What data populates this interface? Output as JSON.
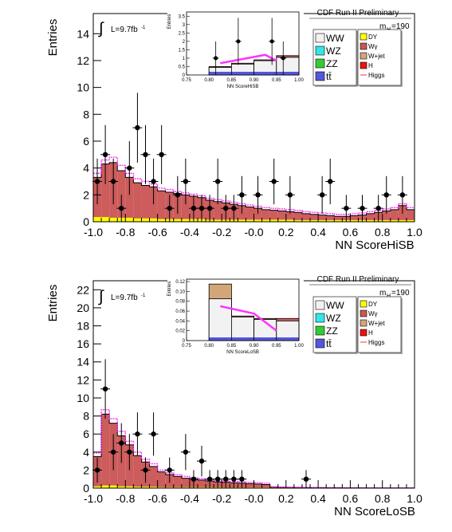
{
  "chart_data": [
    {
      "type": "bar",
      "xlabel": "NN ScoreHiSB",
      "ylabel": "Entries",
      "header": "CDF Run II Preliminary",
      "mass_label": "m",
      "mass_sub": "H",
      "mass_value": "=190",
      "lumi_label": "L=9.7fb",
      "lumi_sup": "-1",
      "integral_symbol": "∫",
      "xlim": [
        -1.0,
        1.0
      ],
      "ylim": [
        0,
        15.5
      ],
      "xticks": [
        "-1.0",
        "-0.8",
        "-0.6",
        "-0.4",
        "-0.2",
        "-0.0",
        "0.2",
        "0.4",
        "0.6",
        "0.8",
        "1.0"
      ],
      "yticks": [
        "0",
        "2",
        "4",
        "6",
        "8",
        "10",
        "12",
        "14"
      ],
      "legend": [
        {
          "label": "WW",
          "color": "#f2f2f2"
        },
        {
          "label": "WZ",
          "color": "#33e6e6"
        },
        {
          "label": "ZZ",
          "color": "#33cc33"
        },
        {
          "label": "tt̄",
          "color": "#5555dd"
        },
        {
          "label": "DY",
          "color": "#ffff00"
        },
        {
          "label": "Wγ",
          "color": "#cc5555"
        },
        {
          "label": "W+jet",
          "color": "#d2a679"
        },
        {
          "label": "H",
          "color": "#ee1111"
        },
        {
          "label": "Higgs",
          "color": "#ff3333"
        }
      ],
      "bin_edges_step": 0.05,
      "total_bkg": [
        3.3,
        4.3,
        4.4,
        3.8,
        3.3,
        2.9,
        2.7,
        2.6,
        2.3,
        2.2,
        2.1,
        2.0,
        1.9,
        1.8,
        1.6,
        1.5,
        1.4,
        1.3,
        1.2,
        1.1,
        1.0,
        0.9,
        0.85,
        0.8,
        0.75,
        0.7,
        0.6,
        0.55,
        0.5,
        0.45,
        0.4,
        0.4,
        0.45,
        0.5,
        0.6,
        0.7,
        0.8,
        0.9,
        1.2,
        0.9
      ],
      "yellow_part": [
        0.35,
        0.35,
        0.3,
        0.3,
        0.3,
        0.25,
        0.25,
        0.25,
        0.2,
        0.2,
        0.2,
        0.2,
        0.2,
        0.2,
        0.15,
        0.15,
        0.15,
        0.15,
        0.15,
        0.15,
        0.15,
        0.15,
        0.15,
        0.15,
        0.15,
        0.12,
        0.12,
        0.12,
        0.12,
        0.12,
        0.12,
        0.12,
        0.12,
        0.12,
        0.12,
        0.12,
        0.12,
        0.12,
        0.12,
        0.12
      ],
      "signal": [
        3.6,
        4.6,
        4.8,
        4.2,
        3.6,
        3.2,
        3.0,
        2.8,
        2.5,
        2.4,
        2.25,
        2.15,
        2.05,
        1.95,
        1.75,
        1.65,
        1.55,
        1.45,
        1.35,
        1.25,
        1.15,
        1.05,
        1.0,
        0.95,
        0.9,
        0.85,
        0.75,
        0.7,
        0.65,
        0.6,
        0.55,
        0.55,
        0.6,
        0.65,
        0.75,
        0.85,
        0.95,
        1.05,
        1.35,
        1.05
      ],
      "data_points": [
        {
          "x": -0.975,
          "y": 3,
          "err": 1.7
        },
        {
          "x": -0.925,
          "y": 5,
          "err": 2.2
        },
        {
          "x": -0.875,
          "y": 3,
          "err": 1.7
        },
        {
          "x": -0.825,
          "y": 1,
          "err": 1.0
        },
        {
          "x": -0.775,
          "y": 4,
          "err": 2.0
        },
        {
          "x": -0.725,
          "y": 7,
          "err": 2.6
        },
        {
          "x": -0.675,
          "y": 5,
          "err": 2.2
        },
        {
          "x": -0.625,
          "y": 3,
          "err": 1.7
        },
        {
          "x": -0.575,
          "y": 5,
          "err": 2.2
        },
        {
          "x": -0.525,
          "y": 1,
          "err": 1.0
        },
        {
          "x": -0.475,
          "y": 2,
          "err": 1.4
        },
        {
          "x": -0.425,
          "y": 3,
          "err": 1.7
        },
        {
          "x": -0.375,
          "y": 1,
          "err": 1.0
        },
        {
          "x": -0.325,
          "y": 1,
          "err": 1.0
        },
        {
          "x": -0.275,
          "y": 1,
          "err": 1.0
        },
        {
          "x": -0.225,
          "y": 3,
          "err": 1.7
        },
        {
          "x": -0.175,
          "y": 1,
          "err": 1.0
        },
        {
          "x": -0.125,
          "y": 1,
          "err": 1.0
        },
        {
          "x": -0.075,
          "y": 2,
          "err": 1.4
        },
        {
          "x": 0.025,
          "y": 2,
          "err": 1.4
        },
        {
          "x": 0.125,
          "y": 3,
          "err": 1.7
        },
        {
          "x": 0.225,
          "y": 2,
          "err": 1.4
        },
        {
          "x": 0.425,
          "y": 2,
          "err": 1.4
        },
        {
          "x": 0.475,
          "y": 3,
          "err": 1.7
        },
        {
          "x": 0.575,
          "y": 1,
          "err": 1.0
        },
        {
          "x": 0.675,
          "y": 1,
          "err": 1.0
        },
        {
          "x": 0.775,
          "y": 1,
          "err": 1.0
        },
        {
          "x": 0.825,
          "y": 2,
          "err": 1.4
        },
        {
          "x": 0.925,
          "y": 2,
          "err": 1.4
        }
      ],
      "inset": {
        "xlabel": "NN ScoreHiSB",
        "ylabel": "Entries",
        "xlim": [
          0.75,
          1.0
        ],
        "ylim": [
          0,
          3.75
        ],
        "xticks": [
          "0.75",
          "0.80",
          "0.85",
          "0.90",
          "0.95",
          "1.00"
        ],
        "yticks": [
          "0",
          "0.5",
          "1",
          "1.5",
          "2",
          "2.5",
          "3",
          "3.5"
        ],
        "bin_edges": [
          0.8,
          0.85,
          0.9,
          0.95,
          1.0
        ],
        "bkg": [
          0.5,
          0.7,
          0.9,
          1.15,
          0.55
        ],
        "white_top": [
          0.45,
          0.65,
          0.85,
          1.05,
          0.2
        ],
        "signal_line": [
          [
            0.825,
            0.7
          ],
          [
            0.925,
            1.2
          ],
          [
            0.95,
            0.85
          ]
        ],
        "data_points": [
          {
            "x": 0.815,
            "y": 1,
            "err": 1.0
          },
          {
            "x": 0.865,
            "y": 2,
            "err": 1.4
          },
          {
            "x": 0.94,
            "y": 2,
            "err": 1.4
          },
          {
            "x": 0.965,
            "y": 1,
            "err": 1.0
          }
        ]
      }
    },
    {
      "type": "bar",
      "xlabel": "NN ScoreLoSB",
      "ylabel": "Entries",
      "header": "CDF Run II Preliminary",
      "mass_label": "m",
      "mass_sub": "H",
      "mass_value": "=190",
      "lumi_label": "L=9.7fb",
      "lumi_sup": "-1",
      "integral_symbol": "∫",
      "xlim": [
        -1.0,
        1.0
      ],
      "ylim": [
        0,
        23
      ],
      "xticks": [
        "-1.0",
        "-0.8",
        "-0.6",
        "-0.4",
        "-0.2",
        "-0.0",
        "0.2",
        "0.4",
        "0.6",
        "0.8",
        "1.0"
      ],
      "yticks": [
        "0",
        "2",
        "4",
        "6",
        "8",
        "10",
        "12",
        "14",
        "16",
        "18",
        "20",
        "22"
      ],
      "legend": [
        {
          "label": "WW",
          "color": "#f2f2f2"
        },
        {
          "label": "WZ",
          "color": "#33e6e6"
        },
        {
          "label": "ZZ",
          "color": "#33cc33"
        },
        {
          "label": "tt̄",
          "color": "#5555dd"
        },
        {
          "label": "DY",
          "color": "#ffff00"
        },
        {
          "label": "Wγ",
          "color": "#cc5555"
        },
        {
          "label": "W+jet",
          "color": "#d2a679"
        },
        {
          "label": "H",
          "color": "#ee1111"
        },
        {
          "label": "Higgs",
          "color": "#ff3333"
        }
      ],
      "bin_edges_step": 0.05,
      "total_bkg": [
        3.5,
        8.2,
        7.2,
        5.8,
        4.8,
        3.6,
        2.9,
        2.4,
        1.8,
        1.5,
        1.3,
        1.1,
        1.0,
        0.9,
        0.8,
        0.7,
        0.65,
        0.6,
        0.55,
        0.5,
        0.45,
        0.4,
        0.12,
        0.1,
        0.08,
        0.07,
        0.06,
        0.05,
        0.05,
        0.04,
        0.04,
        0.03,
        0.03,
        0.03,
        0.02,
        0.02,
        0.02,
        0.02,
        0.02,
        0.02
      ],
      "yellow_part": [
        0.2,
        0.3,
        0.3,
        0.2,
        0.2,
        0.15,
        0.15,
        0.15,
        0.1,
        0.1,
        0.1,
        0.1,
        0.1,
        0.1,
        0.1,
        0.1,
        0.08,
        0.08,
        0.08,
        0.08,
        0.08,
        0.08,
        0.05,
        0.05,
        0.04,
        0.04,
        0.03,
        0.03,
        0.03,
        0.02,
        0.02,
        0.02,
        0.02,
        0.02,
        0.01,
        0.01,
        0.01,
        0.01,
        0.01,
        0.01
      ],
      "signal": [
        3.9,
        8.7,
        7.7,
        6.3,
        5.2,
        4.0,
        3.2,
        2.7,
        2.0,
        1.7,
        1.5,
        1.3,
        1.15,
        1.05,
        0.95,
        0.85,
        0.8,
        0.75,
        0.7,
        0.65,
        0.6,
        0.55,
        0.15,
        0.12,
        0.1,
        0.09,
        0.08,
        0.07,
        0.06,
        0.05,
        0.05,
        0.04,
        0.04,
        0.04,
        0.03,
        0.03,
        0.03,
        0.03,
        0.03,
        0.03
      ],
      "data_points": [
        {
          "x": -0.975,
          "y": 2,
          "err": 1.4
        },
        {
          "x": -0.925,
          "y": 11,
          "err": 3.3
        },
        {
          "x": -0.875,
          "y": 4,
          "err": 2.0
        },
        {
          "x": -0.825,
          "y": 5,
          "err": 2.2
        },
        {
          "x": -0.775,
          "y": 4,
          "err": 2.0
        },
        {
          "x": -0.725,
          "y": 6,
          "err": 2.4
        },
        {
          "x": -0.675,
          "y": 2,
          "err": 1.4
        },
        {
          "x": -0.625,
          "y": 6,
          "err": 2.4
        },
        {
          "x": -0.525,
          "y": 2,
          "err": 1.4
        },
        {
          "x": -0.425,
          "y": 4,
          "err": 2.0
        },
        {
          "x": -0.375,
          "y": 1,
          "err": 1.0
        },
        {
          "x": -0.325,
          "y": 3,
          "err": 1.7
        },
        {
          "x": -0.275,
          "y": 1,
          "err": 1.0
        },
        {
          "x": -0.225,
          "y": 1,
          "err": 1.0
        },
        {
          "x": -0.175,
          "y": 1,
          "err": 1.0
        },
        {
          "x": -0.125,
          "y": 1,
          "err": 1.0
        },
        {
          "x": -0.075,
          "y": 1,
          "err": 1.0
        },
        {
          "x": 0.325,
          "y": 1,
          "err": 1.0
        }
      ],
      "inset": {
        "xlabel": "NN ScoreLoSB",
        "ylabel": "Entries",
        "xlim": [
          0.75,
          1.0
        ],
        "ylim": [
          0,
          0.125
        ],
        "xticks": [
          "0.75",
          "0.80",
          "0.85",
          "0.90",
          "0.95",
          "1.00"
        ],
        "yticks": [
          "0",
          "0.02",
          "0.04",
          "0.06",
          "0.08",
          "0.10",
          "0.12"
        ],
        "bin_edges": [
          0.8,
          0.85,
          0.9,
          0.95,
          1.0
        ],
        "bkg": [
          0.115,
          0.05,
          0.045,
          0.045,
          0.02
        ],
        "white_top": [
          0.085,
          0.048,
          0.043,
          0.04,
          0.012
        ],
        "signal_line": [
          [
            0.825,
            0.07
          ],
          [
            0.9,
            0.055
          ],
          [
            0.95,
            0.02
          ]
        ],
        "data_points": []
      }
    }
  ]
}
